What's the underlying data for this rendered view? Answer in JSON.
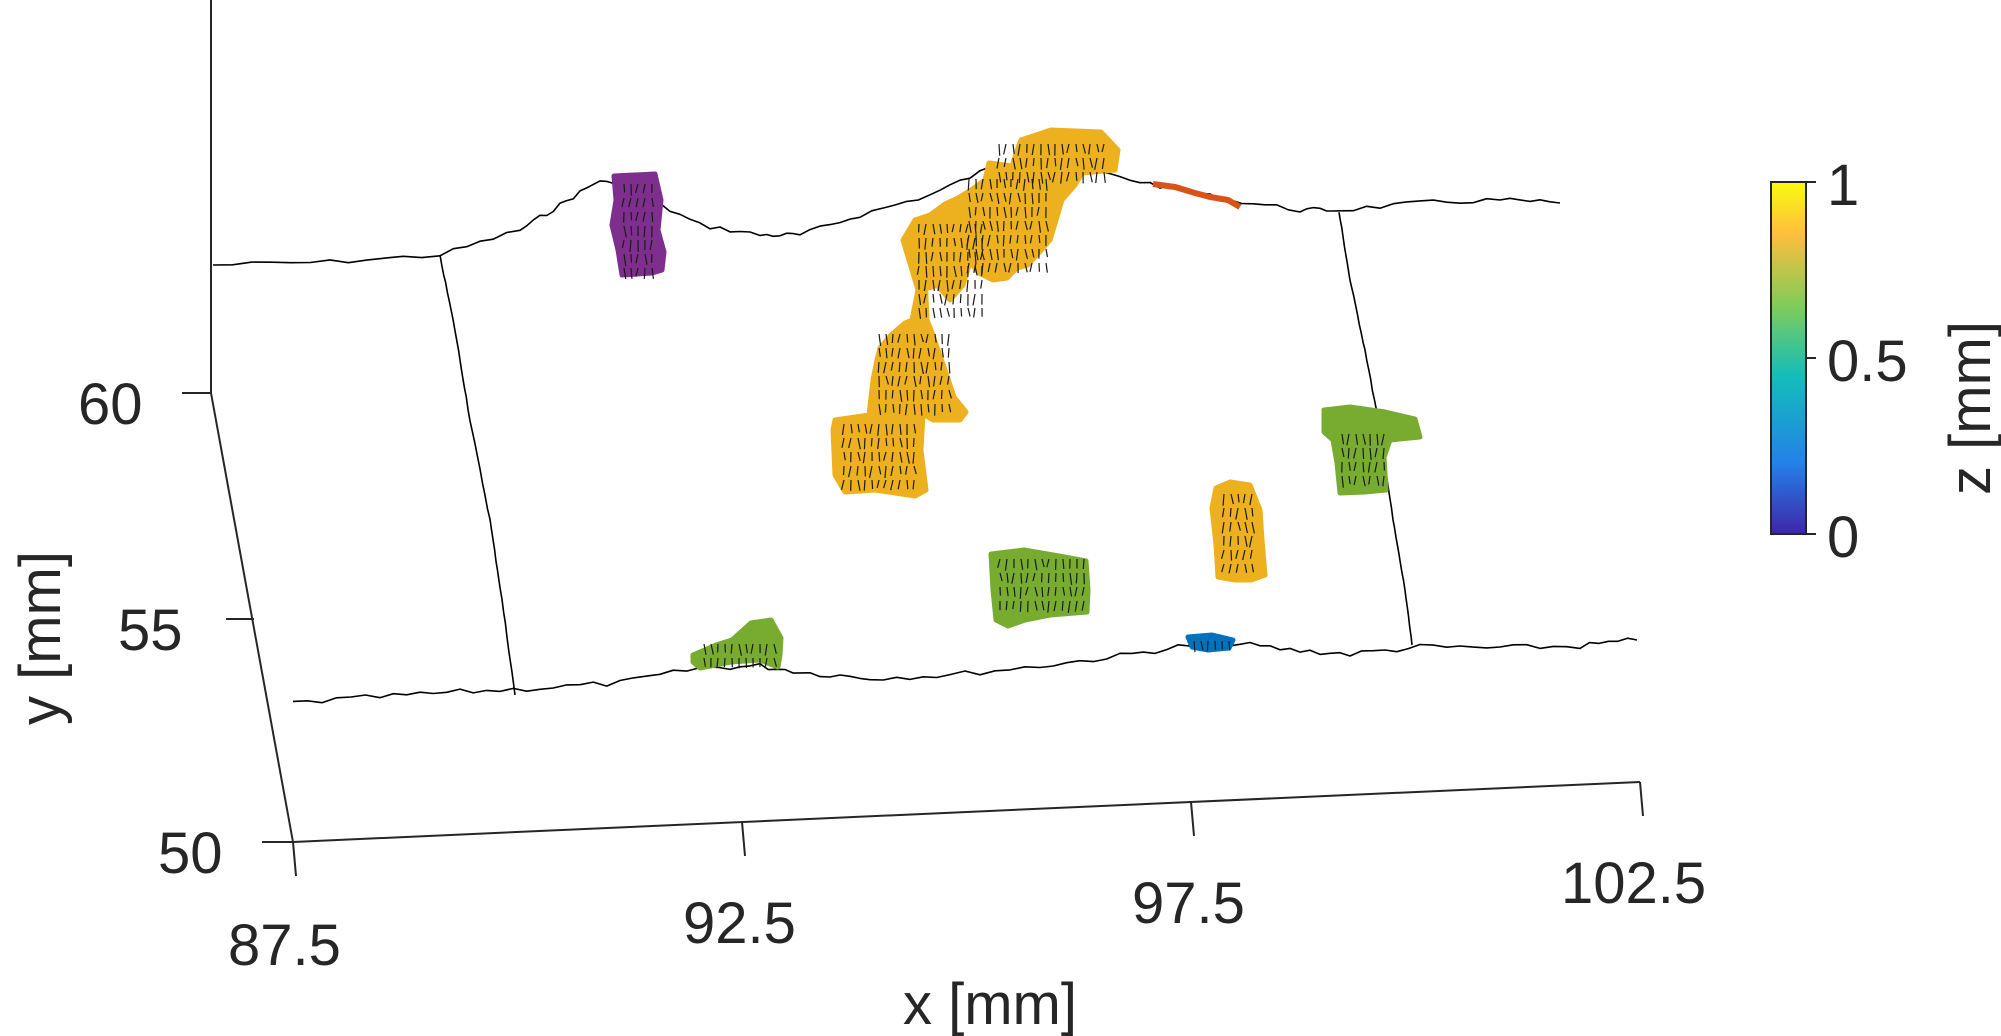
{
  "chart_data": {
    "type": "surface3d",
    "xlabel": "x [mm]",
    "ylabel": "y [mm]",
    "zlabel": "z [mm]",
    "xlim": [
      87.5,
      102.5
    ],
    "ylim": [
      50,
      63
    ],
    "zlim": [
      0,
      1
    ],
    "xticks": [
      "87.5",
      "92.5",
      "97.5",
      "102.5"
    ],
    "yticks": [
      "50",
      "55",
      "60"
    ],
    "colorbar": {
      "label": "z [mm]",
      "ticks": [
        "0",
        "0.5",
        "1"
      ],
      "colors": [
        "#3e26a8",
        "#2481e9",
        "#13beb8",
        "#81cc59",
        "#fdbe3d",
        "#f9fb0e"
      ]
    },
    "regions": [
      {
        "color": "#7e2f8e",
        "x": 91.3,
        "y": 62.5
      },
      {
        "color": "#edb120",
        "x": 95.2,
        "y": 60.2
      },
      {
        "color": "#d95319",
        "x": 97.4,
        "y": 63.6
      },
      {
        "color": "#77ac30",
        "x": 99.6,
        "y": 59.2
      },
      {
        "color": "#edb120",
        "x": 98.2,
        "y": 56.6
      },
      {
        "color": "#77ac30",
        "x": 95.1,
        "y": 55.3
      },
      {
        "color": "#77ac30",
        "x": 91.9,
        "y": 53.9
      },
      {
        "color": "#0072bd",
        "x": 97.8,
        "y": 53.8
      }
    ]
  }
}
